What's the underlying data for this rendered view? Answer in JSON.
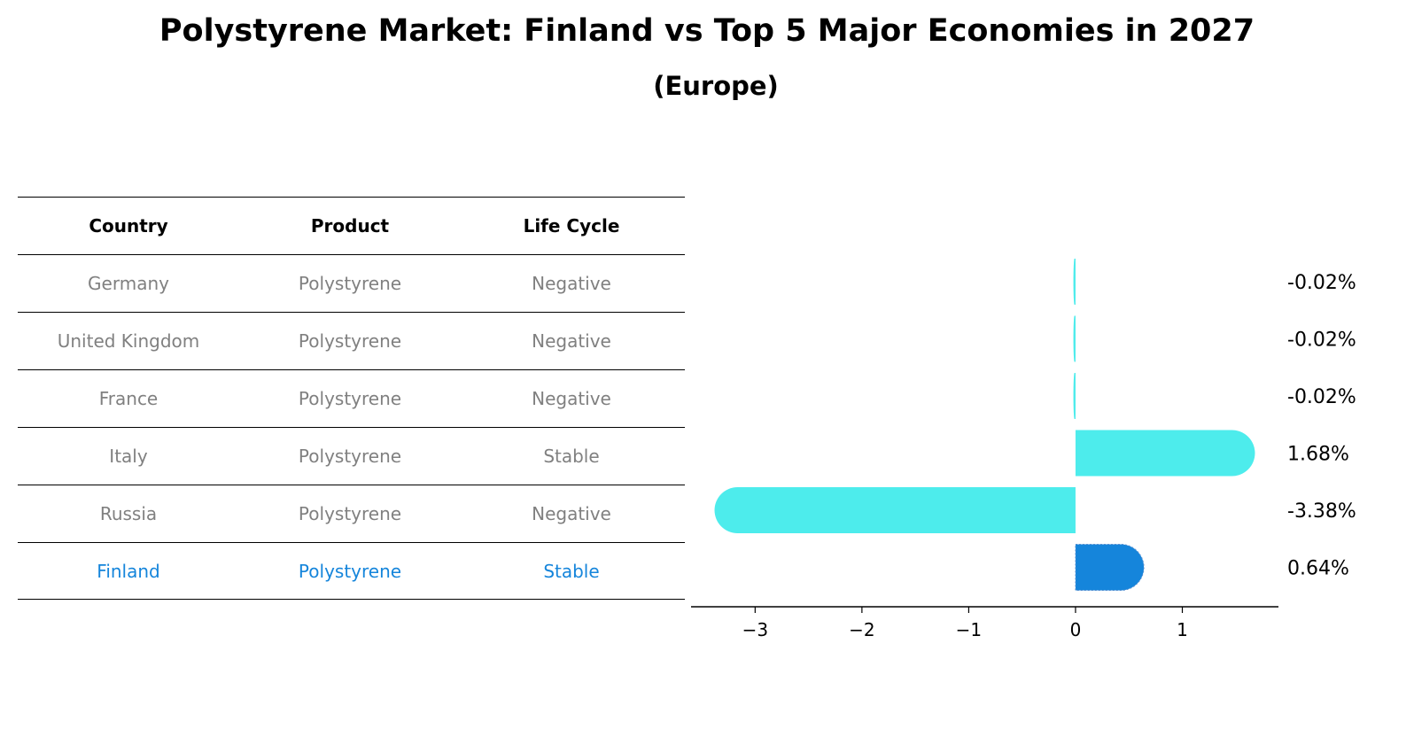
{
  "title": "Polystyrene Market: Finland vs Top 5 Major Economies in 2027",
  "subtitle": "(Europe)",
  "table": {
    "headers": [
      "Country",
      "Product",
      "Life Cycle"
    ],
    "rows": [
      [
        "Germany",
        "Polystyrene",
        "Negative"
      ],
      [
        "United Kingdom",
        "Polystyrene",
        "Negative"
      ],
      [
        "France",
        "Polystyrene",
        "Negative"
      ],
      [
        "Italy",
        "Polystyrene",
        "Stable"
      ],
      [
        "Russia",
        "Polystyrene",
        "Negative"
      ],
      [
        "Finland",
        "Polystyrene",
        "Stable"
      ]
    ]
  },
  "colors": {
    "bar": "#4decec",
    "highlight": "#1585db",
    "highlight_text": "#1585db",
    "muted_text": "#808080"
  },
  "chart_data": {
    "type": "bar",
    "orientation": "horizontal",
    "categories": [
      "Germany",
      "United Kingdom",
      "France",
      "Italy",
      "Russia",
      "Finland"
    ],
    "values": [
      -0.02,
      -0.02,
      -0.02,
      1.68,
      -3.38,
      0.64
    ],
    "labels": [
      "-0.02%",
      "-0.02%",
      "-0.02%",
      "1.68%",
      "-3.38%",
      "0.64%"
    ],
    "highlight": "Finland",
    "xlim": [
      -3.6,
      1.9
    ],
    "xticks": [
      -3,
      -2,
      -1,
      0,
      1
    ],
    "xtick_labels": [
      "−3",
      "−2",
      "−1",
      "0",
      "1"
    ],
    "xlabel": "",
    "ylabel": "",
    "grid": false
  }
}
